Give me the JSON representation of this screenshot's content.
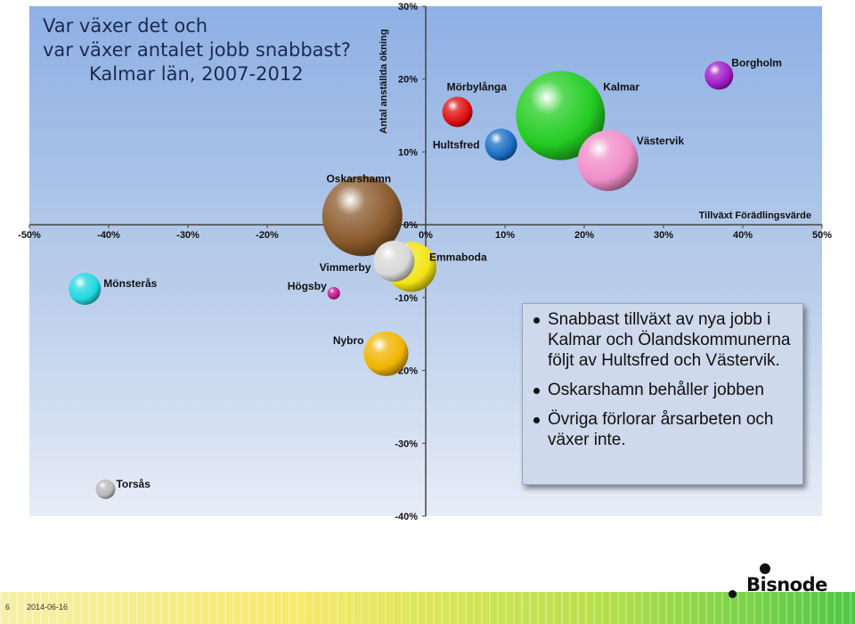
{
  "chart_data": {
    "type": "bubble",
    "title_lines": [
      "Var växer det och",
      "var växer antalet jobb snabbast?",
      "Kalmar län, 2007-2012"
    ],
    "xlabel": "Tillväxt Förädlingsvärde",
    "ylabel": "Antal anställda ökning",
    "xlim": [
      -0.5,
      0.5
    ],
    "ylim": [
      -0.4,
      0.3
    ],
    "x_ticks": [
      "-50%",
      "-40%",
      "-30%",
      "-20%",
      "-10%",
      "0%",
      "10%",
      "20%",
      "30%",
      "40%",
      "50%"
    ],
    "y_ticks": [
      "30%",
      "20%",
      "10%",
      "0%",
      "-10%",
      "-20%",
      "-30%",
      "-40%"
    ],
    "points": [
      {
        "name": "Borgholm",
        "x": 0.37,
        "y": 0.205,
        "size": 16,
        "color": "#a01cc8"
      },
      {
        "name": "Kalmar",
        "x": 0.17,
        "y": 0.15,
        "size": 50,
        "color": "#22cc22"
      },
      {
        "name": "Mörbylånga",
        "x": 0.04,
        "y": 0.155,
        "size": 17,
        "color": "#e01010"
      },
      {
        "name": "Hultsfred",
        "x": 0.095,
        "y": 0.11,
        "size": 18,
        "color": "#1a6fc4"
      },
      {
        "name": "Västervik",
        "x": 0.23,
        "y": 0.088,
        "size": 34,
        "color": "#f08cc8"
      },
      {
        "name": "Oskarshamn",
        "x": -0.08,
        "y": 0.012,
        "size": 45,
        "color": "#8a5a2c"
      },
      {
        "name": "Emmaboda",
        "x": -0.018,
        "y": -0.058,
        "size": 28,
        "color": "#f2e414"
      },
      {
        "name": "Vimmerby",
        "x": -0.04,
        "y": -0.05,
        "size": 23,
        "color": "#d8d8d8"
      },
      {
        "name": "Mönsterås",
        "x": -0.43,
        "y": -0.088,
        "size": 18,
        "color": "#20d8e0"
      },
      {
        "name": "Högsby",
        "x": -0.116,
        "y": -0.094,
        "size": 7,
        "color": "#c01890"
      },
      {
        "name": "Nybro",
        "x": -0.05,
        "y": -0.177,
        "size": 25,
        "color": "#f0b400"
      },
      {
        "name": "Torsås",
        "x": -0.404,
        "y": -0.363,
        "size": 11,
        "color": "#b8b8b8"
      }
    ]
  },
  "callout": {
    "bullets": [
      "Snabbast tillväxt av nya jobb i Kalmar och Ölandskommunerna följt av Hultsfred och Västervik.",
      "Oskarshamn behåller jobben",
      "Övriga förlorar årsarbeten och växer inte."
    ]
  },
  "footer": {
    "page": "6",
    "date": "2014-06-16"
  },
  "logo": {
    "text": "Bisnode"
  }
}
